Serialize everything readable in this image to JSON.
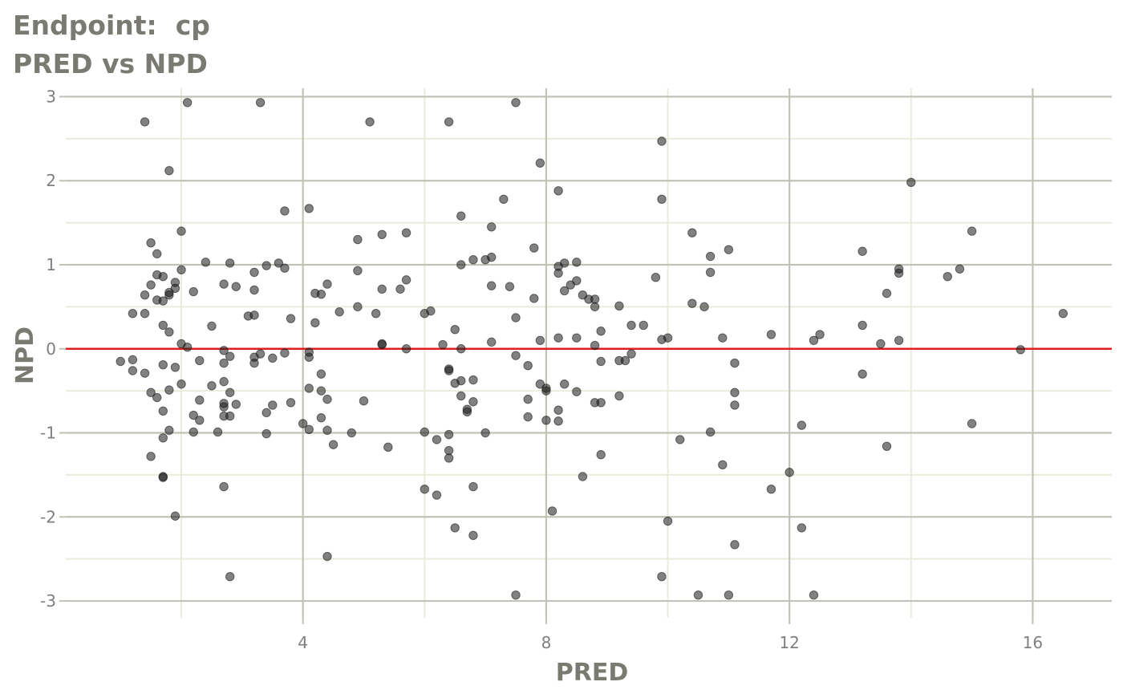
{
  "chart_data": {
    "type": "scatter",
    "title": "Endpoint:  cp",
    "subtitle": "PRED vs NPD",
    "xlabel": "PRED",
    "ylabel": "NPD",
    "xlim": [
      0.1,
      17.3
    ],
    "ylim": [
      -3.2,
      3.1
    ],
    "x_ticks": [
      4,
      8,
      12,
      16
    ],
    "y_ticks": [
      -3,
      -2,
      -1,
      0,
      1,
      2,
      3
    ],
    "y_tick_labels": [
      "-3",
      "-2",
      "-1",
      "0",
      "1",
      "2",
      "3"
    ],
    "reference_line": {
      "y": 0,
      "color": "#e02020"
    },
    "grid": true,
    "colors": {
      "point": "#1a1a1a",
      "major_grid": "#c2c2b8",
      "minor_grid": "#ebebdd",
      "tick_text": "#7f7f7f",
      "title_text": "#7a7a72"
    },
    "points": [
      [
        1.4,
        2.7
      ],
      [
        2.1,
        2.93
      ],
      [
        3.3,
        2.93
      ],
      [
        5.1,
        2.7
      ],
      [
        6.4,
        2.7
      ],
      [
        7.5,
        2.93
      ],
      [
        9.9,
        2.47
      ],
      [
        1.8,
        2.12
      ],
      [
        7.9,
        2.21
      ],
      [
        14.0,
        1.98
      ],
      [
        8.2,
        1.88
      ],
      [
        9.9,
        1.78
      ],
      [
        7.3,
        1.78
      ],
      [
        3.7,
        1.64
      ],
      [
        4.1,
        1.67
      ],
      [
        6.6,
        1.58
      ],
      [
        7.1,
        1.45
      ],
      [
        15.0,
        1.4
      ],
      [
        2.0,
        1.4
      ],
      [
        5.3,
        1.36
      ],
      [
        5.7,
        1.38
      ],
      [
        10.4,
        1.38
      ],
      [
        1.5,
        1.26
      ],
      [
        4.9,
        1.3
      ],
      [
        7.8,
        1.2
      ],
      [
        11.0,
        1.18
      ],
      [
        13.2,
        1.16
      ],
      [
        1.6,
        1.13
      ],
      [
        7.1,
        1.09
      ],
      [
        7.0,
        1.06
      ],
      [
        6.8,
        1.06
      ],
      [
        10.7,
        1.1
      ],
      [
        2.4,
        1.03
      ],
      [
        2.8,
        1.02
      ],
      [
        3.6,
        1.02
      ],
      [
        8.3,
        1.02
      ],
      [
        8.5,
        1.03
      ],
      [
        6.6,
        1.0
      ],
      [
        3.4,
        0.99
      ],
      [
        8.2,
        0.98
      ],
      [
        13.8,
        0.95
      ],
      [
        14.8,
        0.95
      ],
      [
        2.0,
        0.94
      ],
      [
        3.7,
        0.96
      ],
      [
        4.9,
        0.93
      ],
      [
        3.2,
        0.91
      ],
      [
        8.2,
        0.9
      ],
      [
        10.7,
        0.91
      ],
      [
        13.8,
        0.9
      ],
      [
        1.6,
        0.88
      ],
      [
        1.7,
        0.86
      ],
      [
        14.6,
        0.86
      ],
      [
        9.8,
        0.85
      ],
      [
        5.7,
        0.82
      ],
      [
        8.5,
        0.81
      ],
      [
        1.9,
        0.79
      ],
      [
        2.7,
        0.77
      ],
      [
        4.4,
        0.77
      ],
      [
        1.5,
        0.76
      ],
      [
        8.4,
        0.76
      ],
      [
        7.1,
        0.75
      ],
      [
        7.4,
        0.74
      ],
      [
        2.9,
        0.74
      ],
      [
        1.9,
        0.72
      ],
      [
        3.2,
        0.7
      ],
      [
        5.3,
        0.71
      ],
      [
        5.6,
        0.71
      ],
      [
        8.3,
        0.69
      ],
      [
        2.2,
        0.68
      ],
      [
        1.8,
        0.67
      ],
      [
        4.2,
        0.66
      ],
      [
        4.3,
        0.65
      ],
      [
        13.6,
        0.66
      ],
      [
        1.4,
        0.64
      ],
      [
        1.8,
        0.64
      ],
      [
        8.6,
        0.64
      ],
      [
        1.6,
        0.58
      ],
      [
        1.7,
        0.57
      ],
      [
        8.7,
        0.59
      ],
      [
        7.8,
        0.6
      ],
      [
        8.8,
        0.59
      ],
      [
        10.4,
        0.54
      ],
      [
        4.9,
        0.5
      ],
      [
        9.2,
        0.51
      ],
      [
        10.6,
        0.5
      ],
      [
        8.8,
        0.5
      ],
      [
        4.6,
        0.44
      ],
      [
        6.1,
        0.45
      ],
      [
        1.2,
        0.42
      ],
      [
        1.4,
        0.42
      ],
      [
        3.1,
        0.39
      ],
      [
        3.2,
        0.4
      ],
      [
        5.2,
        0.42
      ],
      [
        6.0,
        0.42
      ],
      [
        16.5,
        0.42
      ],
      [
        7.5,
        0.37
      ],
      [
        3.8,
        0.36
      ],
      [
        4.2,
        0.31
      ],
      [
        1.7,
        0.28
      ],
      [
        2.5,
        0.27
      ],
      [
        9.4,
        0.28
      ],
      [
        9.6,
        0.28
      ],
      [
        13.2,
        0.28
      ],
      [
        6.5,
        0.23
      ],
      [
        8.9,
        0.21
      ],
      [
        1.8,
        0.2
      ],
      [
        11.7,
        0.17
      ],
      [
        12.5,
        0.17
      ],
      [
        8.2,
        0.13
      ],
      [
        8.5,
        0.13
      ],
      [
        10.9,
        0.13
      ],
      [
        10.0,
        0.13
      ],
      [
        7.9,
        0.1
      ],
      [
        9.9,
        0.11
      ],
      [
        12.4,
        0.1
      ],
      [
        13.8,
        0.1
      ],
      [
        7.1,
        0.08
      ],
      [
        13.5,
        0.06
      ],
      [
        2.0,
        0.06
      ],
      [
        6.3,
        0.05
      ],
      [
        5.3,
        0.05
      ],
      [
        5.3,
        0.06
      ],
      [
        2.1,
        0.02
      ],
      [
        5.7,
        0.0
      ],
      [
        6.6,
        0.0
      ],
      [
        8.8,
        0.04
      ],
      [
        15.8,
        -0.01
      ],
      [
        2.7,
        -0.02
      ],
      [
        4.1,
        -0.04
      ],
      [
        3.7,
        -0.05
      ],
      [
        3.3,
        -0.06
      ],
      [
        9.4,
        -0.06
      ],
      [
        2.8,
        -0.09
      ],
      [
        3.2,
        -0.1
      ],
      [
        3.5,
        -0.11
      ],
      [
        4.1,
        -0.1
      ],
      [
        7.5,
        -0.08
      ],
      [
        1.2,
        -0.13
      ],
      [
        1.0,
        -0.15
      ],
      [
        2.3,
        -0.14
      ],
      [
        3.2,
        -0.17
      ],
      [
        2.7,
        -0.17
      ],
      [
        8.9,
        -0.15
      ],
      [
        9.2,
        -0.14
      ],
      [
        9.3,
        -0.14
      ],
      [
        11.1,
        -0.17
      ],
      [
        1.7,
        -0.19
      ],
      [
        7.7,
        -0.2
      ],
      [
        1.9,
        -0.22
      ],
      [
        6.4,
        -0.24
      ],
      [
        6.4,
        -0.26
      ],
      [
        1.2,
        -0.26
      ],
      [
        1.4,
        -0.29
      ],
      [
        4.3,
        -0.3
      ],
      [
        13.2,
        -0.3
      ],
      [
        6.8,
        -0.37
      ],
      [
        6.6,
        -0.38
      ],
      [
        2.7,
        -0.39
      ],
      [
        6.5,
        -0.41
      ],
      [
        2.0,
        -0.42
      ],
      [
        7.9,
        -0.42
      ],
      [
        8.3,
        -0.42
      ],
      [
        2.5,
        -0.44
      ],
      [
        8.0,
        -0.47
      ],
      [
        4.1,
        -0.47
      ],
      [
        1.8,
        -0.49
      ],
      [
        4.3,
        -0.5
      ],
      [
        8.0,
        -0.5
      ],
      [
        8.5,
        -0.51
      ],
      [
        1.5,
        -0.52
      ],
      [
        2.8,
        -0.52
      ],
      [
        11.1,
        -0.52
      ],
      [
        6.6,
        -0.56
      ],
      [
        9.2,
        -0.56
      ],
      [
        1.6,
        -0.58
      ],
      [
        4.4,
        -0.6
      ],
      [
        7.7,
        -0.6
      ],
      [
        2.3,
        -0.61
      ],
      [
        5.0,
        -0.62
      ],
      [
        6.8,
        -0.63
      ],
      [
        3.8,
        -0.64
      ],
      [
        8.8,
        -0.64
      ],
      [
        8.9,
        -0.64
      ],
      [
        2.7,
        -0.65
      ],
      [
        2.9,
        -0.66
      ],
      [
        3.5,
        -0.67
      ],
      [
        11.1,
        -0.67
      ],
      [
        2.7,
        -0.69
      ],
      [
        6.7,
        -0.72
      ],
      [
        8.2,
        -0.73
      ],
      [
        1.7,
        -0.74
      ],
      [
        6.7,
        -0.75
      ],
      [
        3.4,
        -0.76
      ],
      [
        2.2,
        -0.79
      ],
      [
        2.7,
        -0.8
      ],
      [
        2.8,
        -0.8
      ],
      [
        7.7,
        -0.81
      ],
      [
        4.3,
        -0.82
      ],
      [
        2.3,
        -0.85
      ],
      [
        8.0,
        -0.85
      ],
      [
        8.2,
        -0.86
      ],
      [
        4.0,
        -0.89
      ],
      [
        15.0,
        -0.89
      ],
      [
        12.2,
        -0.91
      ],
      [
        4.1,
        -0.96
      ],
      [
        1.8,
        -0.97
      ],
      [
        4.4,
        -0.97
      ],
      [
        2.2,
        -0.99
      ],
      [
        2.6,
        -0.99
      ],
      [
        4.8,
        -1.0
      ],
      [
        3.4,
        -1.01
      ],
      [
        6.0,
        -0.99
      ],
      [
        7.0,
        -1.0
      ],
      [
        10.7,
        -0.99
      ],
      [
        6.4,
        -1.02
      ],
      [
        1.7,
        -1.06
      ],
      [
        6.2,
        -1.08
      ],
      [
        10.2,
        -1.08
      ],
      [
        4.5,
        -1.14
      ],
      [
        5.4,
        -1.17
      ],
      [
        13.6,
        -1.16
      ],
      [
        6.4,
        -1.21
      ],
      [
        8.9,
        -1.26
      ],
      [
        1.5,
        -1.28
      ],
      [
        6.4,
        -1.3
      ],
      [
        10.9,
        -1.38
      ],
      [
        12.0,
        -1.47
      ],
      [
        1.7,
        -1.52
      ],
      [
        1.7,
        -1.53
      ],
      [
        8.6,
        -1.52
      ],
      [
        2.7,
        -1.64
      ],
      [
        6.8,
        -1.64
      ],
      [
        6.0,
        -1.67
      ],
      [
        11.7,
        -1.67
      ],
      [
        6.2,
        -1.74
      ],
      [
        8.1,
        -1.93
      ],
      [
        1.9,
        -1.99
      ],
      [
        10.0,
        -2.05
      ],
      [
        6.5,
        -2.13
      ],
      [
        12.2,
        -2.13
      ],
      [
        6.8,
        -2.22
      ],
      [
        11.1,
        -2.33
      ],
      [
        4.4,
        -2.47
      ],
      [
        2.8,
        -2.71
      ],
      [
        9.9,
        -2.71
      ],
      [
        7.5,
        -2.93
      ],
      [
        10.5,
        -2.93
      ],
      [
        11.0,
        -2.93
      ],
      [
        12.4,
        -2.93
      ]
    ]
  }
}
